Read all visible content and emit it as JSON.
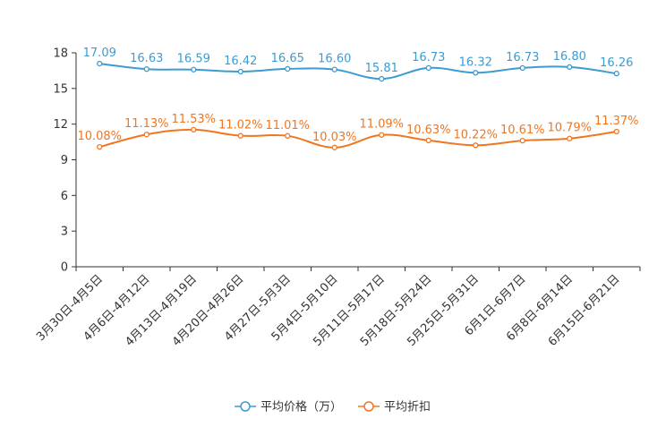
{
  "chart_data": {
    "type": "line",
    "categories": [
      "3月30日-4月5日",
      "4月6日-4月12日",
      "4月13日-4月19日",
      "4月20日-4月26日",
      "4月27日-5月3日",
      "5月4日-5月10日",
      "5月11日-5月17日",
      "5月18日-5月24日",
      "5月25日-5月31日",
      "6月1日-6月7日",
      "6月8日-6月14日",
      "6月15日-6月21日"
    ],
    "ylim": [
      0,
      18
    ],
    "yticks": [
      "0",
      "3",
      "6",
      "9",
      "12",
      "15",
      "18"
    ],
    "series": [
      {
        "name": "平均价格（万）",
        "color": "#3d9bd1",
        "values": [
          17.09,
          16.63,
          16.59,
          16.42,
          16.65,
          16.6,
          15.81,
          16.73,
          16.32,
          16.73,
          16.8,
          16.26
        ],
        "labels": [
          "17.09",
          "16.63",
          "16.59",
          "16.42",
          "16.65",
          "16.60",
          "15.81",
          "16.73",
          "16.32",
          "16.73",
          "16.80",
          "16.26"
        ]
      },
      {
        "name": "平均折扣",
        "color": "#f07620",
        "values": [
          10.08,
          11.13,
          11.53,
          11.02,
          11.01,
          10.03,
          11.09,
          10.63,
          10.22,
          10.61,
          10.79,
          11.37
        ],
        "labels": [
          "10.08%",
          "11.13%",
          "11.53%",
          "11.02%",
          "11.01%",
          "10.03%",
          "11.09%",
          "10.63%",
          "10.22%",
          "10.61%",
          "10.79%",
          "11.37%"
        ]
      }
    ],
    "legend_position": "bottom-center",
    "grid": false
  }
}
